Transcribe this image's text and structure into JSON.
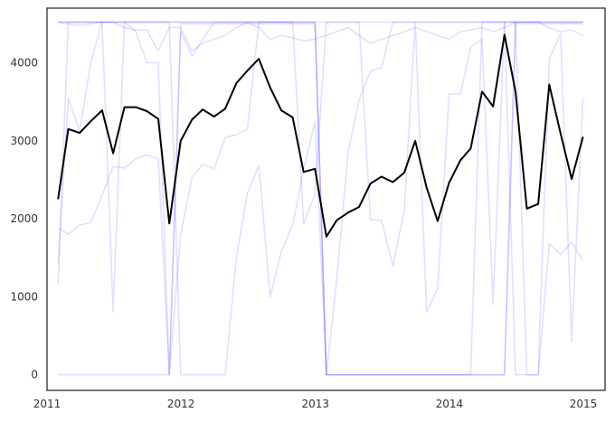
{
  "chart_data": {
    "type": "line",
    "title": "",
    "xlabel": "",
    "ylabel": "",
    "grid": false,
    "xlim": [
      "2011-01-01",
      "2015-03-01"
    ],
    "ylim": [
      -200,
      4700
    ],
    "x_ticks": [
      {
        "date": "2011-01-01",
        "label": "2011"
      },
      {
        "date": "2012-01-01",
        "label": "2012"
      },
      {
        "date": "2013-01-01",
        "label": "2013"
      },
      {
        "date": "2014-01-01",
        "label": "2014"
      },
      {
        "date": "2015-01-01",
        "label": "2015"
      }
    ],
    "y_ticks": [
      0,
      1000,
      2000,
      3000,
      4000
    ],
    "colors": {
      "main": "#000000",
      "background": "#0000ff",
      "background_opacity": 0.12,
      "axis_frame": "#262626",
      "tick_text": "#333333"
    },
    "x": [
      "2011-01-31",
      "2011-02-28",
      "2011-03-31",
      "2011-04-30",
      "2011-05-31",
      "2011-06-30",
      "2011-07-31",
      "2011-08-31",
      "2011-09-30",
      "2011-10-31",
      "2011-11-30",
      "2011-12-31",
      "2012-01-31",
      "2012-02-29",
      "2012-03-31",
      "2012-04-30",
      "2012-05-31",
      "2012-06-30",
      "2012-07-31",
      "2012-08-31",
      "2012-09-30",
      "2012-10-31",
      "2012-11-30",
      "2012-12-31",
      "2013-01-31",
      "2013-02-28",
      "2013-03-31",
      "2013-04-30",
      "2013-05-31",
      "2013-06-30",
      "2013-07-31",
      "2013-08-31",
      "2013-09-30",
      "2013-10-31",
      "2013-11-30",
      "2013-12-31",
      "2014-01-31",
      "2014-02-28",
      "2014-03-31",
      "2014-04-30",
      "2014-05-31",
      "2014-06-30",
      "2014-07-31",
      "2014-08-31",
      "2014-09-30",
      "2014-10-31",
      "2014-11-30",
      "2014-12-31"
    ],
    "series": [
      {
        "role": "main",
        "values": [
          2250,
          3150,
          3100,
          3250,
          3390,
          2840,
          3430,
          3430,
          3380,
          3280,
          1940,
          3000,
          3270,
          3400,
          3310,
          3410,
          3740,
          3900,
          4050,
          3680,
          3390,
          3300,
          2600,
          2640,
          1770,
          1980,
          2080,
          2150,
          2450,
          2540,
          2470,
          2590,
          3000,
          2400,
          1970,
          2460,
          2750,
          2900,
          3630,
          3440,
          4360,
          3630,
          2130,
          2190,
          3720,
          3090,
          2510,
          3050
        ]
      },
      {
        "role": "background",
        "values": [
          0,
          0,
          0,
          0,
          0,
          0,
          0,
          0,
          0,
          0,
          0,
          4500,
          4500,
          4500,
          4500,
          4500,
          4500,
          4500,
          4500,
          4500,
          4500,
          4500,
          4500,
          4500,
          0,
          0,
          0,
          0,
          0,
          0,
          0,
          0,
          0,
          0,
          0,
          0,
          0,
          0,
          0,
          0,
          0,
          4500,
          4500,
          4500,
          4500,
          4500,
          4500,
          4500
        ]
      },
      {
        "role": "background",
        "values": [
          4520,
          4520,
          4520,
          4520,
          4520,
          4520,
          4520,
          4520,
          4520,
          4520,
          4520,
          4520,
          4520,
          4520,
          4520,
          4520,
          4520,
          4520,
          4520,
          4520,
          4520,
          4520,
          4520,
          4520,
          4520,
          4520,
          4520,
          4520,
          4520,
          4520,
          4520,
          4520,
          4520,
          4520,
          4520,
          4520,
          4520,
          4520,
          4520,
          4520,
          4520,
          4520,
          4520,
          4520,
          4520,
          4520,
          4520,
          4520
        ]
      },
      {
        "role": "background",
        "values": [
          1880,
          1800,
          1920,
          1950,
          2300,
          2670,
          2650,
          2770,
          2820,
          2770,
          0,
          1800,
          2530,
          2700,
          2640,
          3040,
          3080,
          3150,
          4520,
          4520,
          4520,
          4520,
          4520,
          4520,
          0,
          0,
          0,
          0,
          0,
          0,
          0,
          0,
          0,
          0,
          0,
          0,
          0,
          0,
          4520,
          4520,
          4520,
          0,
          0,
          0,
          1680,
          1540,
          1700,
          1460
        ]
      },
      {
        "role": "background",
        "values": [
          1150,
          4520,
          4520,
          4520,
          4520,
          4520,
          4520,
          4520,
          4520,
          4520,
          4520,
          0,
          0,
          0,
          0,
          0,
          1510,
          2330,
          2680,
          1000,
          1580,
          1920,
          2630,
          3250,
          0,
          1230,
          2850,
          3520,
          3890,
          3940,
          4520,
          4520,
          4520,
          4520,
          4520,
          4520,
          4520,
          4520,
          4520,
          4520,
          4520,
          4520,
          4520,
          4520,
          4520,
          4520,
          4520,
          4520
        ]
      },
      {
        "role": "background",
        "values": [
          1420,
          3550,
          3120,
          4000,
          4520,
          810,
          4520,
          4400,
          4000,
          4000,
          0,
          4400,
          4080,
          4300,
          4520,
          4520,
          4520,
          4520,
          4520,
          4520,
          4520,
          4520,
          4520,
          4520,
          0,
          0,
          0,
          0,
          0,
          0,
          0,
          0,
          0,
          0,
          0,
          0,
          0,
          0,
          0,
          0,
          0,
          4520,
          4520,
          4520,
          4520,
          4520,
          4520,
          4520
        ]
      },
      {
        "role": "background",
        "values": [
          4520,
          4500,
          4480,
          4500,
          4520,
          4520,
          4450,
          4420,
          4420,
          4150,
          4450,
          4450,
          4150,
          4250,
          4300,
          4350,
          4450,
          4520,
          4450,
          4300,
          4350,
          4320,
          4280,
          4300,
          4350,
          4400,
          4450,
          4350,
          4250,
          4300,
          4350,
          4400,
          4450,
          4400,
          4350,
          4300,
          4400,
          4420,
          4450,
          4400,
          4450,
          4520,
          4520,
          4520,
          4450,
          4400,
          4420,
          4350
        ]
      },
      {
        "role": "background",
        "values": [
          4520,
          4520,
          4520,
          4520,
          4520,
          4520,
          4520,
          4520,
          4520,
          4520,
          4520,
          4520,
          4520,
          4520,
          4520,
          4520,
          4520,
          4520,
          4520,
          4520,
          4520,
          4520,
          1930,
          2320,
          4520,
          4520,
          4520,
          4520,
          1990,
          1980,
          1390,
          2110,
          4520,
          810,
          1100,
          3600,
          3600,
          4200,
          4300,
          900,
          4520,
          4520,
          0,
          0,
          4050,
          4370,
          430,
          3550
        ]
      }
    ]
  }
}
